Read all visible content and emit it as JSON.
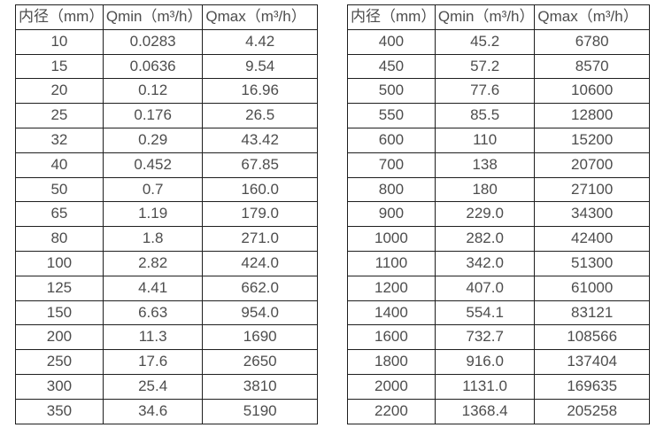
{
  "page": {
    "background_color": "#ffffff",
    "text_color": "#4d4d4d",
    "grid_color": "#1f1f1f"
  },
  "tables": [
    {
      "name": "flow-spec-table-small-diameters",
      "columns": [
        "内径（mm）",
        "Qmin（m³/h）",
        "Qmax（m³/h）"
      ],
      "rows": [
        [
          "10",
          "0.0283",
          "4.42"
        ],
        [
          "15",
          "0.0636",
          "9.54"
        ],
        [
          "20",
          "0.12",
          "16.96"
        ],
        [
          "25",
          "0.176",
          "26.5"
        ],
        [
          "32",
          "0.29",
          "43.42"
        ],
        [
          "40",
          "0.452",
          "67.85"
        ],
        [
          "50",
          "0.7",
          "160.0"
        ],
        [
          "65",
          "1.19",
          "179.0"
        ],
        [
          "80",
          "1.8",
          "271.0"
        ],
        [
          "100",
          "2.82",
          "424.0"
        ],
        [
          "125",
          "4.41",
          "662.0"
        ],
        [
          "150",
          "6.63",
          "954.0"
        ],
        [
          "200",
          "11.3",
          "1690"
        ],
        [
          "250",
          "17.6",
          "2650"
        ],
        [
          "300",
          "25.4",
          "3810"
        ],
        [
          "350",
          "34.6",
          "5190"
        ]
      ]
    },
    {
      "name": "flow-spec-table-large-diameters",
      "columns": [
        "内径（mm）",
        "Qmin（m³/h）",
        "Qmax（m³/h）"
      ],
      "rows": [
        [
          "400",
          "45.2",
          "6780"
        ],
        [
          "450",
          "57.2",
          "8570"
        ],
        [
          "500",
          "77.6",
          "10600"
        ],
        [
          "550",
          "85.5",
          "12800"
        ],
        [
          "600",
          "110",
          "15200"
        ],
        [
          "700",
          "138",
          "20700"
        ],
        [
          "800",
          "180",
          "27100"
        ],
        [
          "900",
          "229.0",
          "34300"
        ],
        [
          "1000",
          "282.0",
          "42400"
        ],
        [
          "1100",
          "342.0",
          "51300"
        ],
        [
          "1200",
          "407.0",
          "61000"
        ],
        [
          "1400",
          "554.1",
          "83121"
        ],
        [
          "1600",
          "732.7",
          "108566"
        ],
        [
          "1800",
          "916.0",
          "137404"
        ],
        [
          "2000",
          "1131.0",
          "169635"
        ],
        [
          "2200",
          "1368.4",
          "205258"
        ]
      ]
    }
  ]
}
